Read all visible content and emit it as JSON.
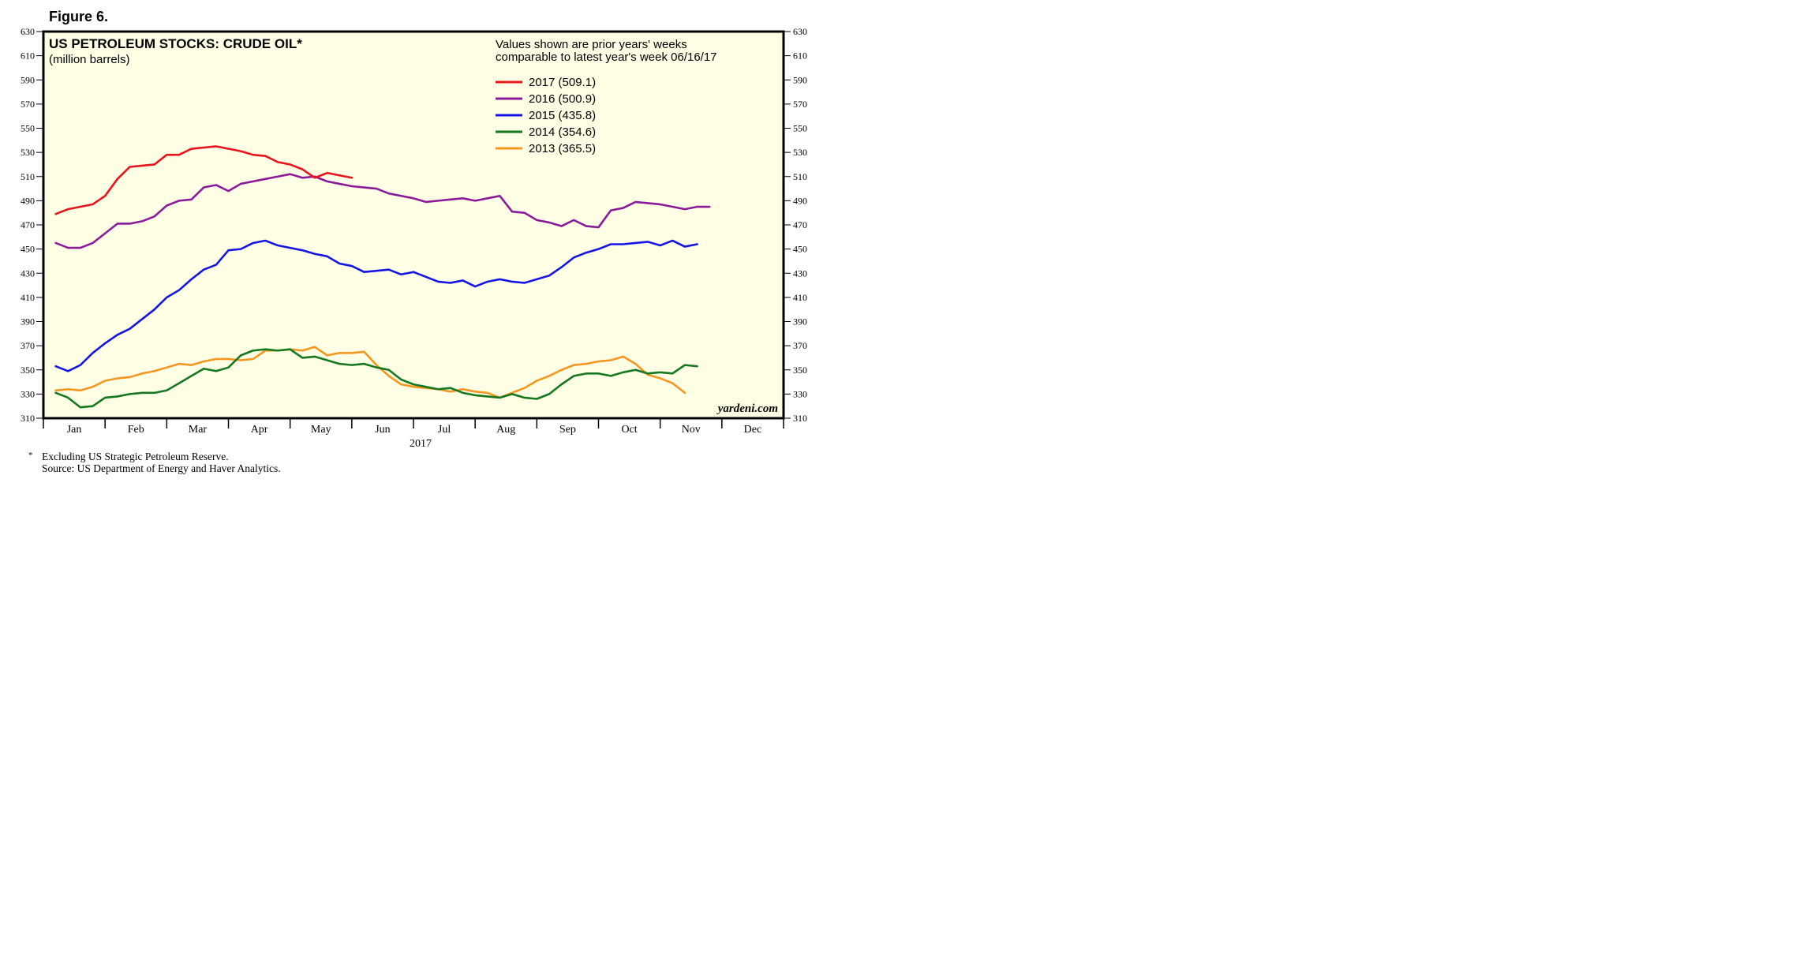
{
  "figure_label": "Figure 6.",
  "footnotes": {
    "marker": "*",
    "note": "Excluding US Strategic Petroleum Reserve.",
    "source": "Source: US Department of Energy and Haver Analytics."
  },
  "watermark": "yardeni.com",
  "colors": {
    "plot_background": "#FFFFE6",
    "frame": "#000000",
    "s2017": "#E8141A",
    "s2016": "#8B1A9B",
    "s2015": "#1414E6",
    "s2014": "#14781E",
    "s2013": "#F5961E"
  },
  "chart_data": {
    "type": "line",
    "title": "US PETROLEUM STOCKS: CRUDE OIL*",
    "subtitle": "(million barrels)",
    "annotation_lines": [
      "Values shown are prior years' weeks",
      "comparable to latest year's week 06/16/17"
    ],
    "xlabel": "2017",
    "ylabel": "",
    "ylim": [
      310,
      630
    ],
    "yticks": [
      310,
      330,
      350,
      370,
      390,
      410,
      430,
      450,
      470,
      490,
      510,
      530,
      550,
      570,
      590,
      610,
      630
    ],
    "x_unit": "week of year",
    "xlim": [
      0,
      60
    ],
    "months": [
      "Jan",
      "Feb",
      "Mar",
      "Apr",
      "May",
      "Jun",
      "Jul",
      "Aug",
      "Sep",
      "Oct",
      "Nov",
      "Dec"
    ],
    "legend_position": "top-right",
    "grid": false,
    "series": [
      {
        "name": "2017 (509.1)",
        "color_key": "s2017",
        "values": [
          479,
          483,
          485,
          487,
          494,
          508,
          518,
          519,
          520,
          528,
          528,
          533,
          534,
          535,
          533,
          531,
          528,
          527,
          522,
          520,
          516,
          509,
          513,
          511,
          509
        ]
      },
      {
        "name": "2016 (500.9)",
        "color_key": "s2016",
        "values": [
          455,
          451,
          451,
          455,
          463,
          471,
          471,
          473,
          477,
          486,
          490,
          491,
          501,
          503,
          498,
          504,
          506,
          508,
          510,
          512,
          509,
          510,
          506,
          504,
          502,
          501,
          500,
          496,
          494,
          492,
          489,
          490,
          491,
          492,
          490,
          492,
          494,
          481,
          480,
          474,
          472,
          469,
          474,
          469,
          468,
          482,
          484,
          489,
          488,
          487,
          485,
          483,
          485,
          485
        ]
      },
      {
        "name": "2015 (435.8)",
        "color_key": "s2015",
        "values": [
          353,
          349,
          354,
          364,
          372,
          379,
          384,
          392,
          400,
          410,
          416,
          425,
          433,
          437,
          449,
          450,
          455,
          457,
          453,
          451,
          449,
          446,
          444,
          438,
          436,
          431,
          432,
          433,
          429,
          431,
          427,
          423,
          422,
          424,
          419,
          423,
          425,
          423,
          422,
          425,
          428,
          435,
          443,
          447,
          450,
          454,
          454,
          455,
          456,
          453,
          457,
          452,
          454
        ]
      },
      {
        "name": "2014 (354.6)",
        "color_key": "s2014",
        "values": [
          331,
          327,
          319,
          320,
          327,
          328,
          330,
          331,
          331,
          333,
          339,
          345,
          351,
          349,
          352,
          362,
          366,
          367,
          366,
          367,
          360,
          361,
          358,
          355,
          354,
          355,
          352,
          350,
          342,
          338,
          336,
          334,
          335,
          331,
          329,
          328,
          327,
          330,
          327,
          326,
          330,
          338,
          345,
          347,
          347,
          345,
          348,
          350,
          347,
          348,
          347,
          354,
          353
        ]
      },
      {
        "name": "2013 (365.5)",
        "color_key": "s2013",
        "values": [
          333,
          334,
          333,
          336,
          341,
          343,
          344,
          347,
          349,
          352,
          355,
          354,
          357,
          359,
          359,
          358,
          359,
          366,
          366,
          367,
          366,
          369,
          362,
          364,
          364,
          365,
          354,
          345,
          338,
          336,
          335,
          334,
          332,
          334,
          332,
          331,
          327,
          331,
          335,
          341,
          345,
          350,
          354,
          355,
          357,
          358,
          361,
          355,
          346,
          343,
          339,
          331
        ]
      }
    ]
  }
}
